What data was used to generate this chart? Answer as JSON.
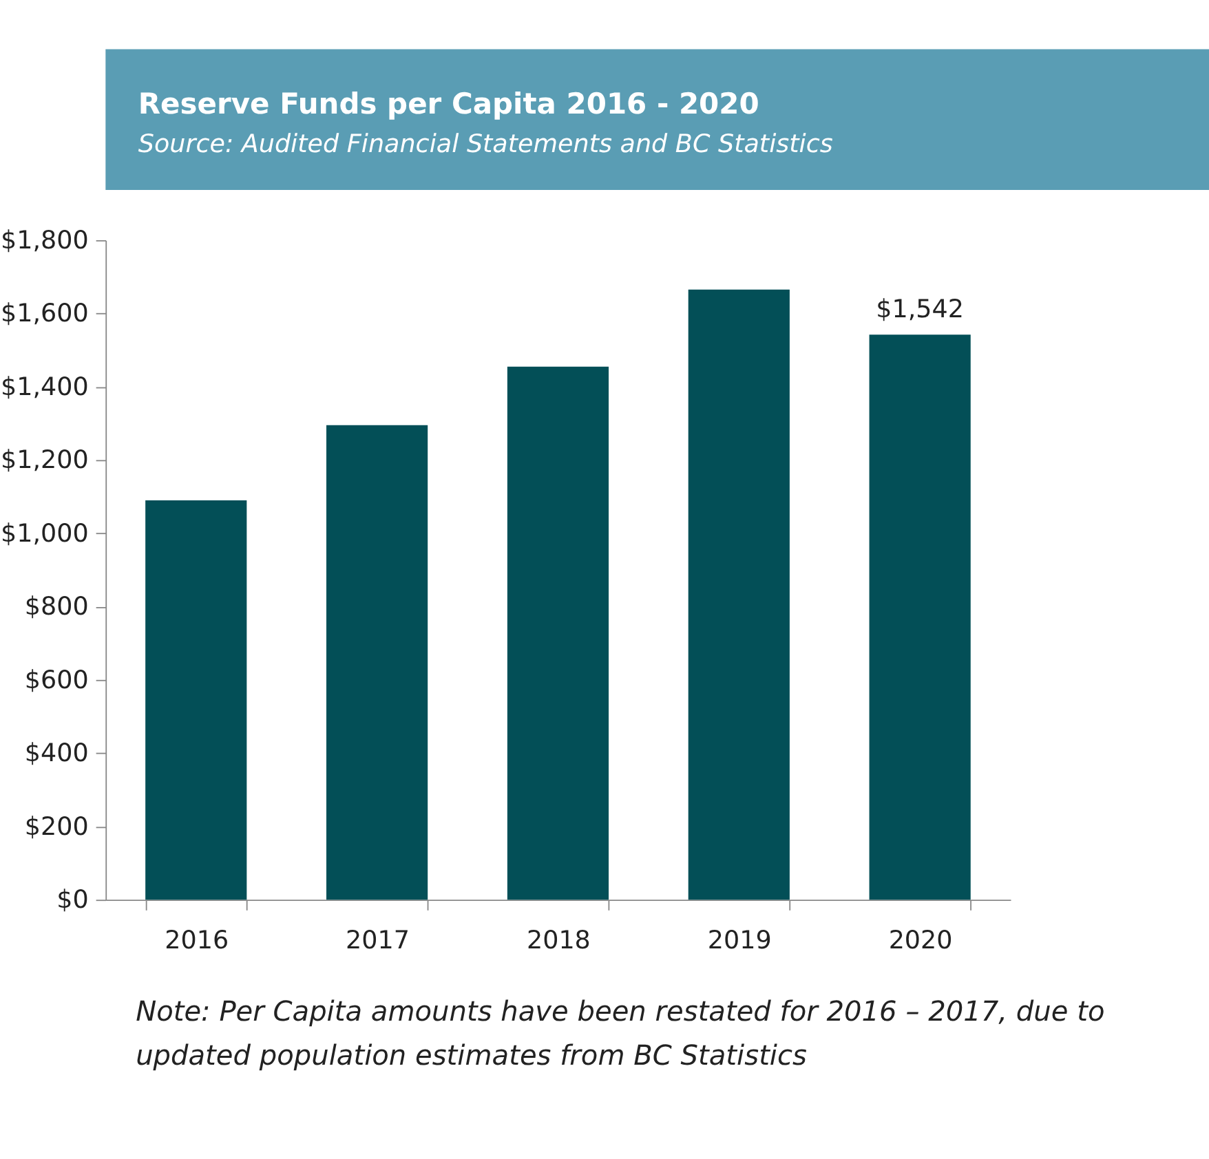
{
  "chart_data": {
    "type": "bar",
    "title": "Reserve Funds per Capita 2016 - 2020",
    "subtitle": "Source: Audited Financial Statements and BC Statistics",
    "categories": [
      "2016",
      "2017",
      "2018",
      "2019",
      "2020"
    ],
    "values": [
      1090,
      1295,
      1455,
      1665,
      1542
    ],
    "value_labels": [
      null,
      null,
      null,
      null,
      "$1,542"
    ],
    "color": "#034f57",
    "ylim": [
      0,
      1800
    ],
    "yticks": [
      {
        "value": 0,
        "label": "$0"
      },
      {
        "value": 200,
        "label": "$200"
      },
      {
        "value": 400,
        "label": "$400"
      },
      {
        "value": 600,
        "label": "$600"
      },
      {
        "value": 800,
        "label": "$800"
      },
      {
        "value": 1000,
        "label": "$1,000"
      },
      {
        "value": 1200,
        "label": "$1,200"
      },
      {
        "value": 1400,
        "label": "$1,400"
      },
      {
        "value": 1600,
        "label": "$1,600"
      },
      {
        "value": 1800,
        "label": "$1,800"
      }
    ],
    "grid": false,
    "annotations": [
      "Note: Per Capita amounts have been restated for 2016 – 2017, due to updated population estimates from BC Statistics"
    ]
  }
}
